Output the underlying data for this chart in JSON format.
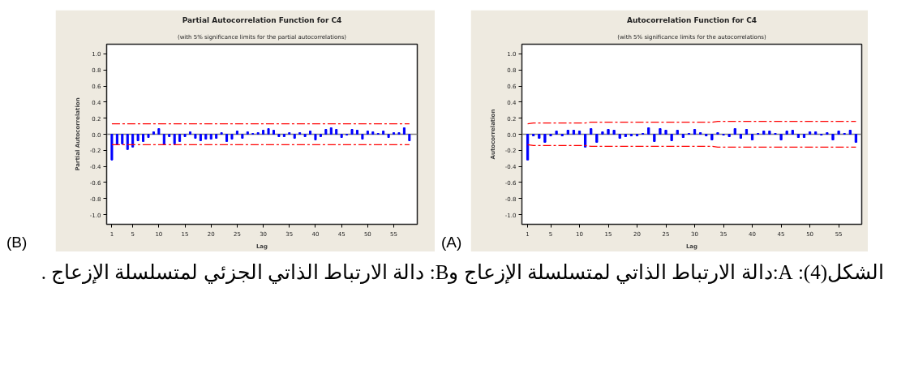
{
  "chart_data": [
    {
      "type": "bar",
      "title": "Partial Autocorrelation Function for C4",
      "subtitle": "(with 5% significance limits for the partial autocorrelations)",
      "xlabel": "Lag",
      "ylabel": "Partial Autocorrelation",
      "xlim": [
        0,
        59.5
      ],
      "xticks": [
        1,
        5,
        10,
        15,
        20,
        25,
        30,
        35,
        40,
        45,
        50,
        55
      ],
      "ylim": [
        -1.12,
        1.12
      ],
      "yticks": [
        {
          "value": -1,
          "label": "-1.0"
        },
        {
          "value": -0.8,
          "label": "-0.8"
        },
        {
          "value": -0.6,
          "label": "-0.6"
        },
        {
          "value": -0.4,
          "label": "-0.4"
        },
        {
          "value": -0.2,
          "label": "-0.2"
        },
        {
          "value": 0,
          "label": "0.0"
        },
        {
          "value": 0.2,
          "label": "0.2"
        },
        {
          "value": 0.4,
          "label": "0.4"
        },
        {
          "value": 0.6,
          "label": "0.6"
        },
        {
          "value": 0.8,
          "label": "0.8"
        },
        {
          "value": 1,
          "label": "1.0"
        }
      ],
      "grid": false,
      "ref_lines": [
        {
          "axis": "y",
          "value": 0,
          "color": "#808080"
        }
      ],
      "annotations": [
        "(B)",
        "الشكل(4): A:دالة الارتباط الذاتي لمتسلسلة الإزعاج  وB: دالة الارتباط الذاتي الجزئي لمتسلسلة الإزعاج ."
      ],
      "series": [
        {
          "color": "#0000ff",
          "x": [
            1,
            2,
            3,
            4,
            5,
            6,
            7,
            8,
            9,
            10,
            11,
            12,
            13,
            14,
            15,
            16,
            17,
            18,
            19,
            20,
            21,
            22,
            23,
            24,
            25,
            26,
            27,
            28,
            29,
            30,
            31,
            32,
            33,
            34,
            35,
            36,
            37,
            38,
            39,
            40,
            41,
            42,
            43,
            44,
            45,
            46,
            47,
            48,
            49,
            50,
            51,
            52,
            53,
            54,
            55,
            56,
            57,
            58
          ],
          "values": [
            -0.32,
            -0.13,
            -0.12,
            -0.19,
            -0.16,
            -0.08,
            -0.09,
            -0.04,
            0.03,
            0.07,
            -0.13,
            -0.03,
            -0.12,
            -0.09,
            -0.03,
            0.03,
            -0.05,
            -0.08,
            -0.06,
            -0.06,
            -0.05,
            0.02,
            -0.09,
            -0.06,
            0.04,
            -0.05,
            0.03,
            0.01,
            0.02,
            0.05,
            0.07,
            0.05,
            -0.03,
            -0.03,
            0.02,
            -0.05,
            0.02,
            -0.03,
            0.04,
            -0.07,
            -0.03,
            0.06,
            0.08,
            0.06,
            -0.04,
            -0.01,
            0.06,
            0.05,
            -0.06,
            0.04,
            0.03,
            0.01,
            0.04,
            -0.04,
            0.02,
            0.02,
            0.08,
            -0.08
          ]
        },
        {
          "type": "line",
          "color": "#ff0000",
          "line_style": "dashed",
          "x": [
            1,
            58
          ],
          "values": [
            0.13,
            0.13
          ]
        },
        {
          "type": "line",
          "color": "#ff0000",
          "line_style": "dashed",
          "x": [
            1,
            58
          ],
          "values": [
            -0.13,
            -0.13
          ]
        }
      ]
    },
    {
      "type": "bar",
      "title": "Autocorrelation Function for C4",
      "subtitle": "(with 5% significance limits for the autocorrelations)",
      "xlabel": "Lag",
      "ylabel": "Autocorrelation",
      "xlim": [
        0,
        59
      ],
      "xticks": [
        1,
        5,
        10,
        15,
        20,
        25,
        30,
        35,
        40,
        45,
        50,
        55
      ],
      "ylim": [
        -1.12,
        1.12
      ],
      "yticks": [
        {
          "value": -1,
          "label": "-1.0"
        },
        {
          "value": -0.8,
          "label": "-0.8"
        },
        {
          "value": -0.6,
          "label": "-0.6"
        },
        {
          "value": -0.4,
          "label": "-0.4"
        },
        {
          "value": -0.2,
          "label": "-0.2"
        },
        {
          "value": 0,
          "label": "0.0"
        },
        {
          "value": 0.2,
          "label": "0.2"
        },
        {
          "value": 0.4,
          "label": "0.4"
        },
        {
          "value": 0.6,
          "label": "0.6"
        },
        {
          "value": 0.8,
          "label": "0.8"
        },
        {
          "value": 1,
          "label": "1.0"
        }
      ],
      "grid": false,
      "ref_lines": [
        {
          "axis": "y",
          "value": 0,
          "color": "#808080"
        }
      ],
      "annotations": [
        "(A)"
      ],
      "series": [
        {
          "color": "#0000ff",
          "x": [
            1,
            2,
            3,
            4,
            5,
            6,
            7,
            8,
            9,
            10,
            11,
            12,
            13,
            14,
            15,
            16,
            17,
            18,
            19,
            20,
            21,
            22,
            23,
            24,
            25,
            26,
            27,
            28,
            29,
            30,
            31,
            32,
            33,
            34,
            35,
            36,
            37,
            38,
            39,
            40,
            41,
            42,
            43,
            44,
            45,
            46,
            47,
            48,
            49,
            50,
            51,
            52,
            53,
            54,
            55,
            56,
            57,
            58
          ],
          "values": [
            -0.32,
            -0.02,
            -0.05,
            -0.1,
            -0.02,
            0.04,
            -0.02,
            0.05,
            0.05,
            0.04,
            -0.16,
            0.07,
            -0.1,
            0.03,
            0.06,
            0.05,
            -0.05,
            -0.03,
            -0.02,
            -0.02,
            0.01,
            0.08,
            -0.09,
            0.07,
            0.05,
            -0.08,
            0.05,
            -0.04,
            0.01,
            0.06,
            0.02,
            -0.02,
            -0.07,
            0.02,
            -0.01,
            -0.03,
            0.07,
            -0.05,
            0.06,
            -0.07,
            0.01,
            0.04,
            0.04,
            0.01,
            -0.07,
            0.04,
            0.05,
            -0.04,
            -0.04,
            0.03,
            0.03,
            -0.01,
            0.02,
            -0.07,
            0.04,
            0.01,
            0.05,
            -0.1
          ]
        },
        {
          "type": "line",
          "color": "#ff0000",
          "line_style": "dashed",
          "x": [
            1,
            2,
            11,
            12,
            33,
            34,
            58
          ],
          "values": [
            0.13,
            0.14,
            0.14,
            0.15,
            0.15,
            0.16,
            0.16
          ]
        },
        {
          "type": "line",
          "color": "#ff0000",
          "line_style": "dashed",
          "x": [
            1,
            2,
            11,
            12,
            33,
            34,
            58
          ],
          "values": [
            -0.13,
            -0.14,
            -0.14,
            -0.15,
            -0.15,
            -0.16,
            -0.16
          ]
        }
      ]
    }
  ]
}
